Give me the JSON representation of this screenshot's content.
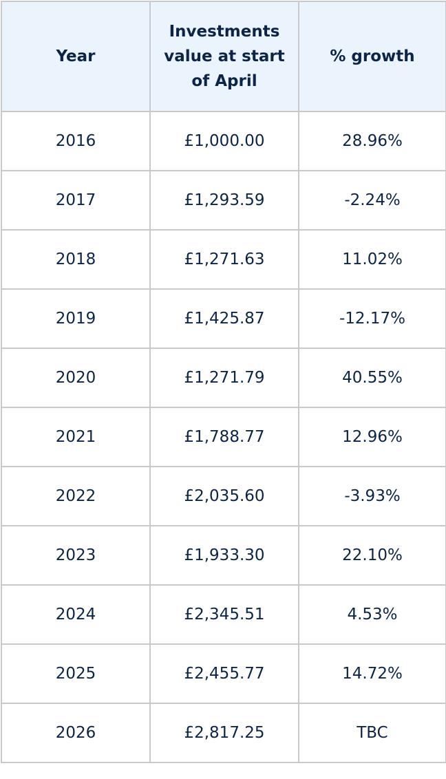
{
  "chart_data": {
    "type": "table",
    "columns": [
      "Year",
      "Investments value at start of April",
      "% growth"
    ],
    "rows": [
      [
        "2016",
        "£1,000.00",
        "28.96%"
      ],
      [
        "2017",
        "£1,293.59",
        "-2.24%"
      ],
      [
        "2018",
        "£1,271.63",
        "11.02%"
      ],
      [
        "2019",
        "£1,425.87",
        "-12.17%"
      ],
      [
        "2020",
        "£1,271.79",
        "40.55%"
      ],
      [
        "2021",
        "£1,788.77",
        "12.96%"
      ],
      [
        "2022",
        "£2,035.60",
        "-3.93%"
      ],
      [
        "2023",
        "£1,933.30",
        "22.10%"
      ],
      [
        "2024",
        "£2,345.51",
        "4.53%"
      ],
      [
        "2025",
        "£2,455.77",
        "14.72%"
      ],
      [
        "2026",
        "£2,817.25",
        "TBC"
      ]
    ],
    "colors": {
      "header_background": "#ebf4fd",
      "text": "#0b2447",
      "border": "#c9c9c9"
    }
  }
}
